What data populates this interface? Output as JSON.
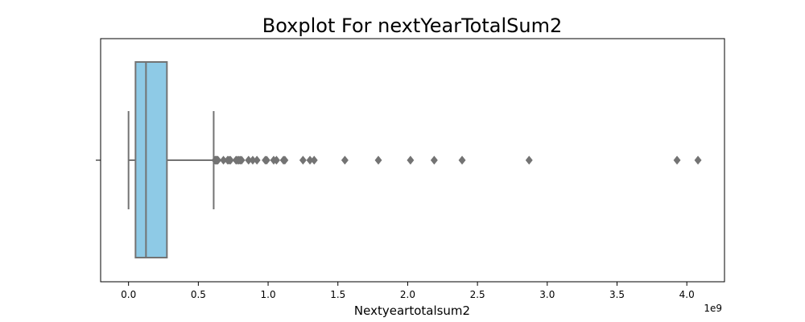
{
  "chart_data": {
    "type": "boxplot",
    "title": "Boxplot For nextYearTotalSum2",
    "xlabel": "Nextyeartotalsum2",
    "ylabel": "",
    "x_offset_label": "1e9",
    "x_scale_factor": 1000000000,
    "xlim": [
      -200000000.0,
      4270000000.0
    ],
    "x_ticks": [
      0,
      500000000.0,
      1000000000.0,
      1500000000.0,
      2000000000.0,
      2500000000.0,
      3000000000.0,
      3500000000.0,
      4000000000.0
    ],
    "x_tick_labels": [
      "0.0",
      "0.5",
      "1.0",
      "1.5",
      "2.0",
      "2.5",
      "3.0",
      "3.5",
      "4.0"
    ],
    "grid": false,
    "box": {
      "whisker_low": 0,
      "q1": 50000000.0,
      "median": 125000000.0,
      "q3": 275000000.0,
      "whisker_high": 610000000.0
    },
    "outliers": [
      620000000.0,
      625000000.0,
      630000000.0,
      635000000.0,
      640000000.0,
      680000000.0,
      710000000.0,
      720000000.0,
      730000000.0,
      770000000.0,
      780000000.0,
      790000000.0,
      800000000.0,
      810000000.0,
      860000000.0,
      890000000.0,
      920000000.0,
      980000000.0,
      990000000.0,
      1040000000.0,
      1060000000.0,
      1110000000.0,
      1120000000.0,
      1250000000.0,
      1300000000.0,
      1330000000.0,
      1550000000.0,
      1790000000.0,
      2020000000.0,
      2190000000.0,
      2390000000.0,
      2870000000.0,
      3930000000.0,
      4080000000.0
    ],
    "colors": {
      "box_fill": "#8ecae6",
      "line": "#737373",
      "outlier": "#737373"
    }
  }
}
